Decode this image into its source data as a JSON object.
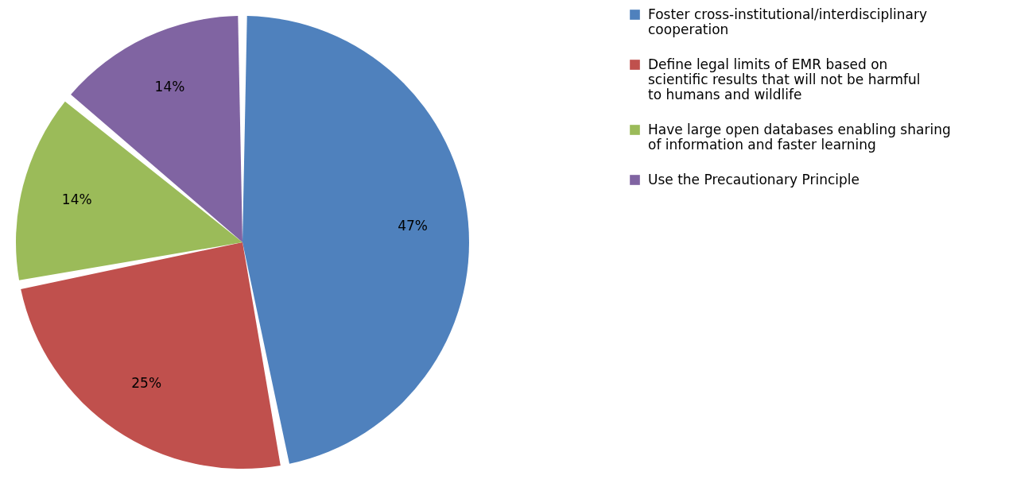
{
  "chart_data": {
    "type": "pie",
    "categories": [
      "Foster cross-institutional/interdisciplinary cooperation",
      "Define legal limits of EMR based on scientific results that will not be harmful to humans and wildlife",
      "Have large open databases enabling sharing of information and faster learning",
      "Use the Precautionary Principle"
    ],
    "values": [
      47,
      25,
      14,
      14
    ],
    "colors": [
      "#4f81bd",
      "#c0504d",
      "#9bbb59",
      "#8064a2"
    ],
    "value_labels": [
      "47%",
      "25%",
      "14%",
      "14%"
    ],
    "legend": "right"
  }
}
